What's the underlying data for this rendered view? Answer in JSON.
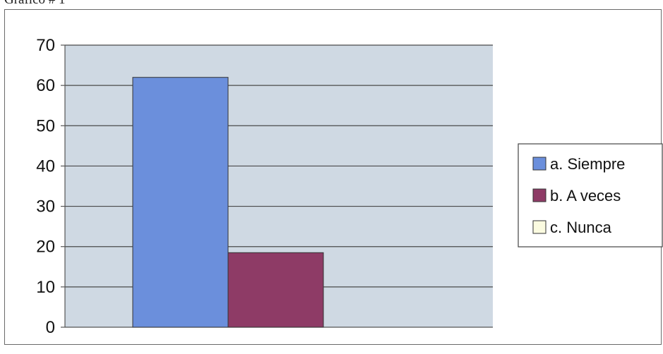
{
  "caption": "Gráfico # 1",
  "chart_data": {
    "type": "bar",
    "title": "",
    "xlabel": "",
    "ylabel": "",
    "ylim": [
      0,
      70
    ],
    "yticks": [
      0,
      10,
      20,
      30,
      40,
      50,
      60,
      70
    ],
    "categories": [
      ""
    ],
    "grid": true,
    "legend_position": "right",
    "series": [
      {
        "name": "a. Siempre",
        "values": [
          62
        ],
        "color": "#6b8fdc"
      },
      {
        "name": "b. A veces",
        "values": [
          18.5
        ],
        "color": "#8e3b66"
      },
      {
        "name": "c. Nunca",
        "values": [
          0
        ],
        "color": "#fbfbe0"
      }
    ],
    "plot_background": "#cfd9e3"
  }
}
